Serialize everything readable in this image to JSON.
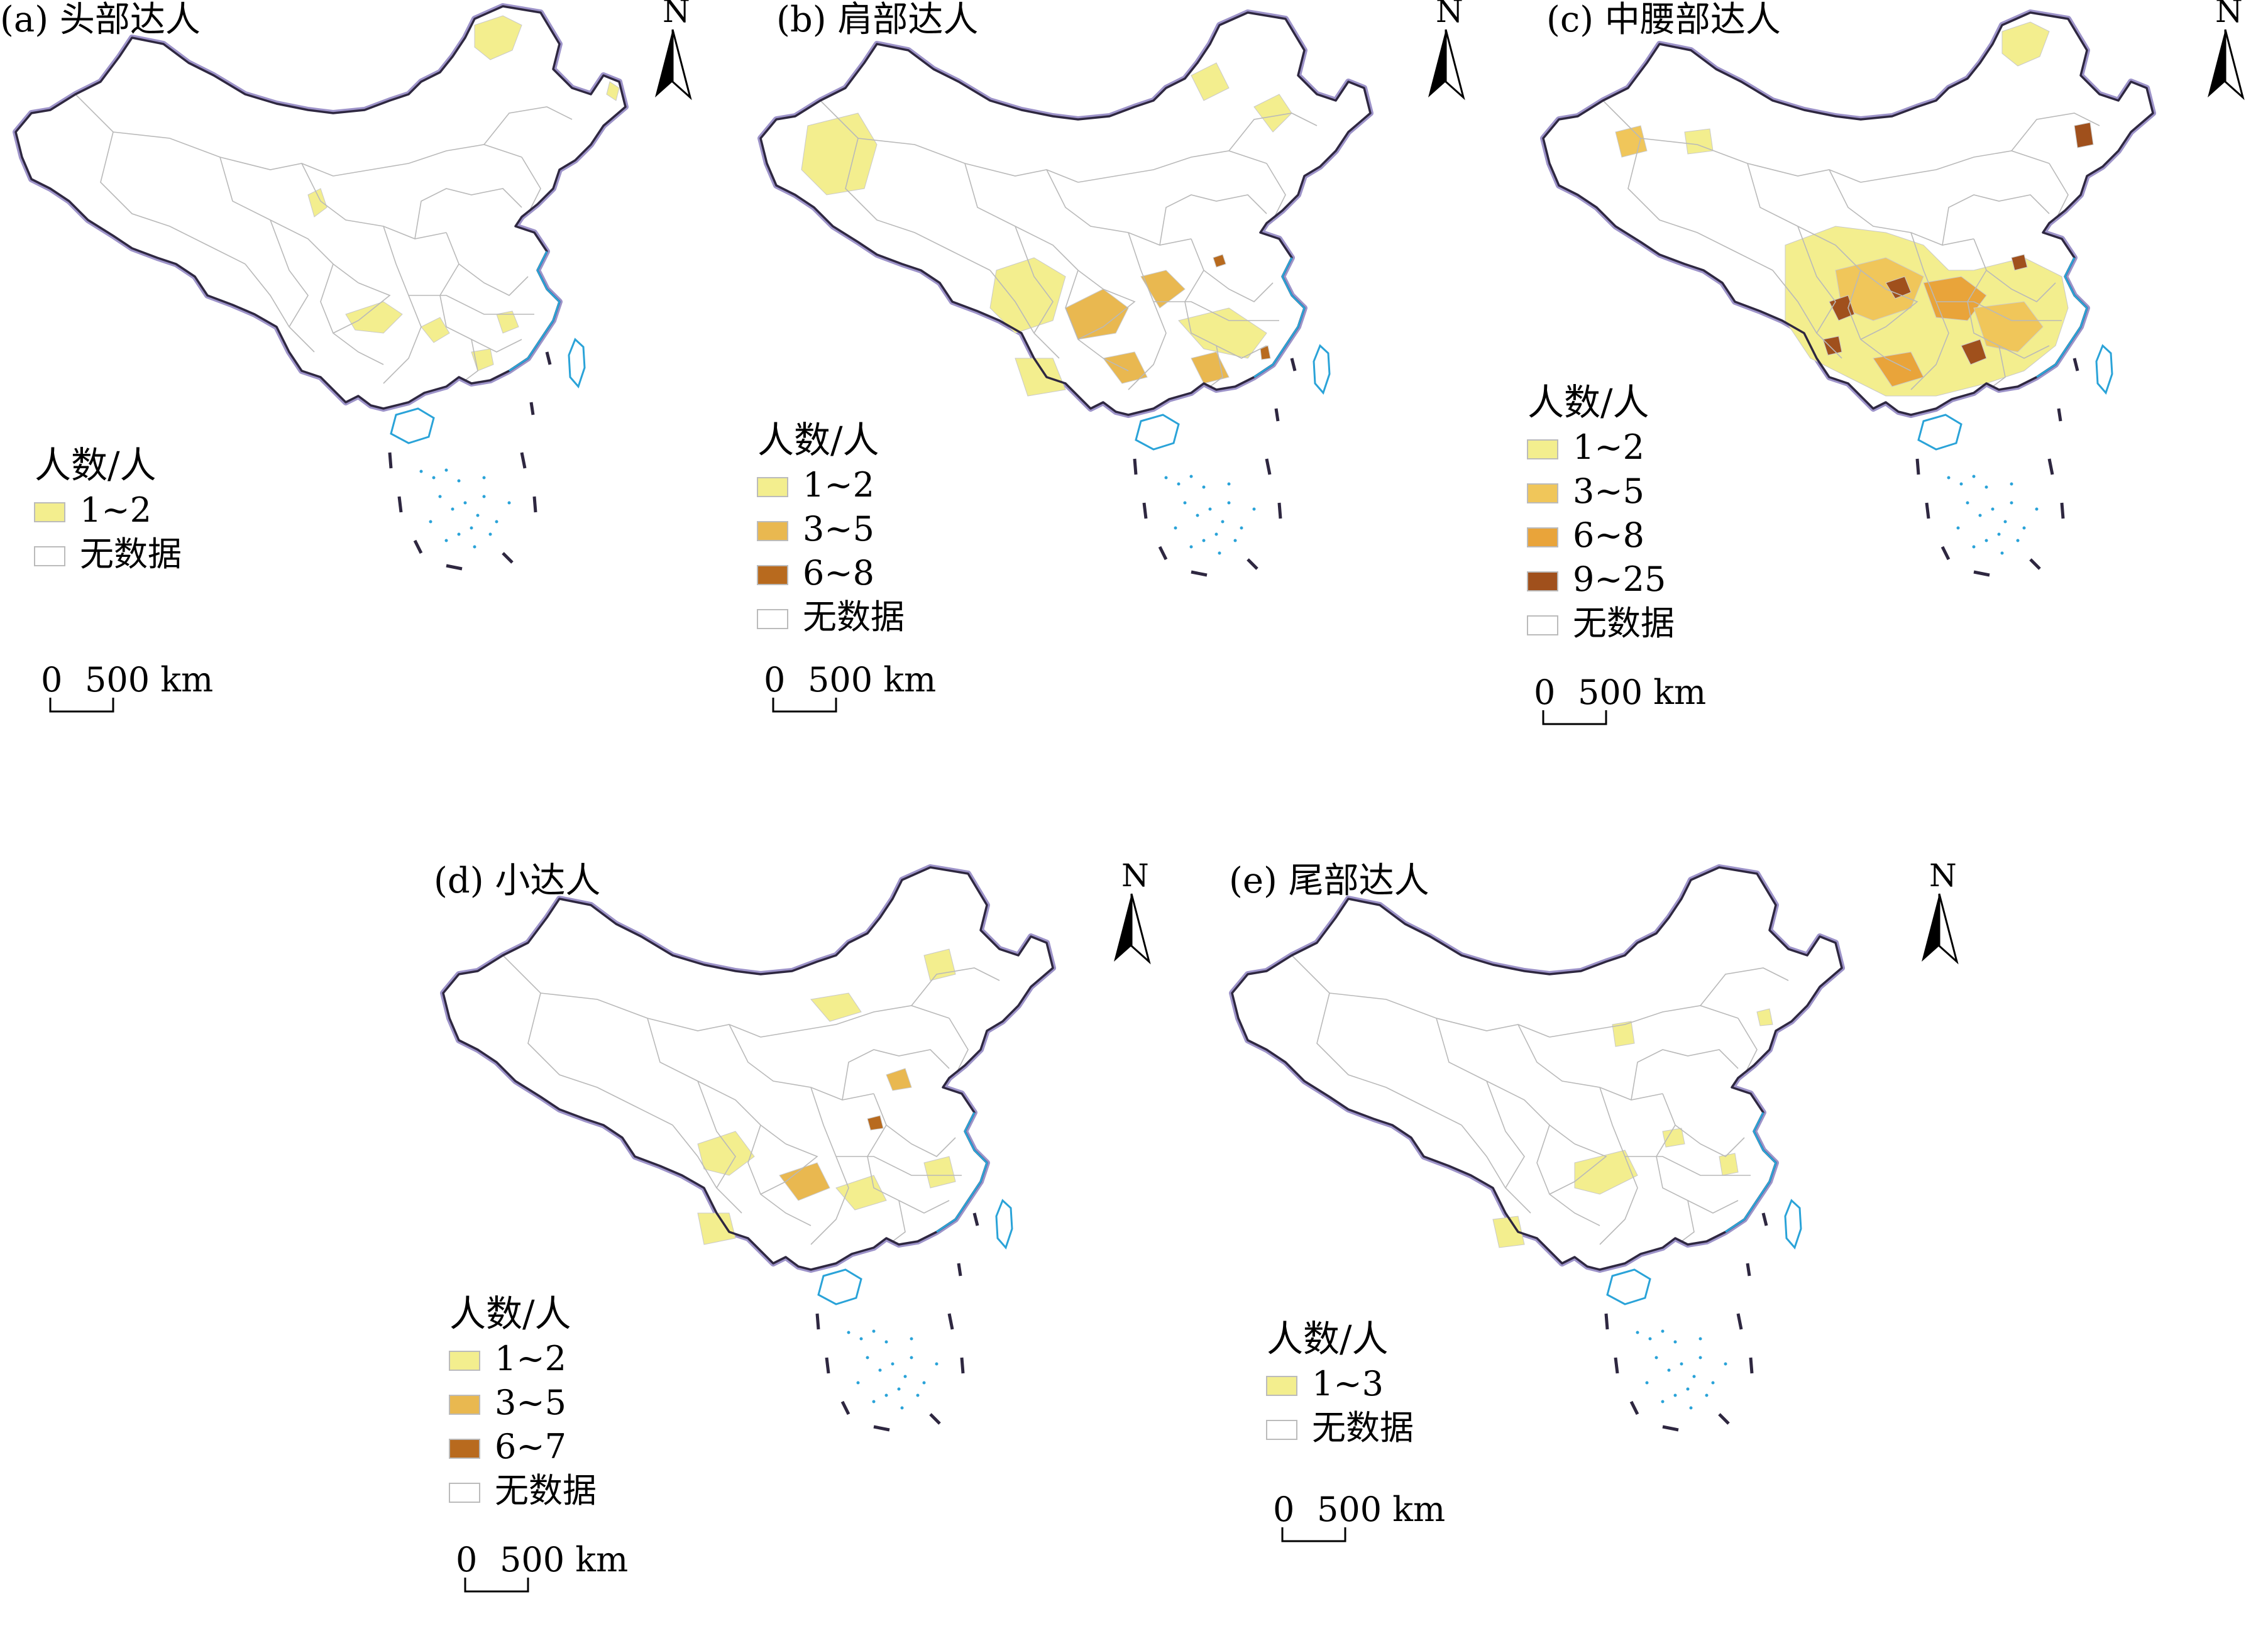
{
  "maps": [
    {
      "id": "a",
      "title": "(a) 头部达人",
      "legend_title": "人数/人",
      "legend": [
        {
          "label": "1~2",
          "color": "#f3ee8e"
        },
        {
          "label": "无数据",
          "color": "#ffffff"
        }
      ],
      "scale_zero": "0",
      "scale_label": "500 km",
      "north": "N"
    },
    {
      "id": "b",
      "title": "(b) 肩部达人",
      "legend_title": "人数/人",
      "legend": [
        {
          "label": "1~2",
          "color": "#f3ee8e"
        },
        {
          "label": "3~5",
          "color": "#e9b850"
        },
        {
          "label": "6~8",
          "color": "#b86a1e"
        },
        {
          "label": "无数据",
          "color": "#ffffff"
        }
      ],
      "scale_zero": "0",
      "scale_label": "500 km",
      "north": "N"
    },
    {
      "id": "c",
      "title": "(c) 中腰部达人",
      "legend_title": "人数/人",
      "legend": [
        {
          "label": "1~2",
          "color": "#f3ee8e"
        },
        {
          "label": "3~5",
          "color": "#f0c65a"
        },
        {
          "label": "6~8",
          "color": "#e9a43a"
        },
        {
          "label": "9~25",
          "color": "#a0501c"
        },
        {
          "label": "无数据",
          "color": "#ffffff"
        }
      ],
      "scale_zero": "0",
      "scale_label": "500 km",
      "north": "N"
    },
    {
      "id": "d",
      "title": "(d) 小达人",
      "legend_title": "人数/人",
      "legend": [
        {
          "label": "1~2",
          "color": "#f3ee8e"
        },
        {
          "label": "3~5",
          "color": "#e9b850"
        },
        {
          "label": "6~7",
          "color": "#b86a1e"
        },
        {
          "label": "无数据",
          "color": "#ffffff"
        }
      ],
      "scale_zero": "0",
      "scale_label": "500 km",
      "north": "N"
    },
    {
      "id": "e",
      "title": "(e) 尾部达人",
      "legend_title": "人数/人",
      "legend": [
        {
          "label": "1~3",
          "color": "#f3ee8e"
        },
        {
          "label": "无数据",
          "color": "#ffffff"
        }
      ],
      "scale_zero": "0",
      "scale_label": "500 km",
      "north": "N"
    }
  ],
  "colors": {
    "border": "#2e2740",
    "border_glow": "#9d93c9",
    "coast": "#2aa3d8",
    "province_line": "#b9b9b9"
  }
}
